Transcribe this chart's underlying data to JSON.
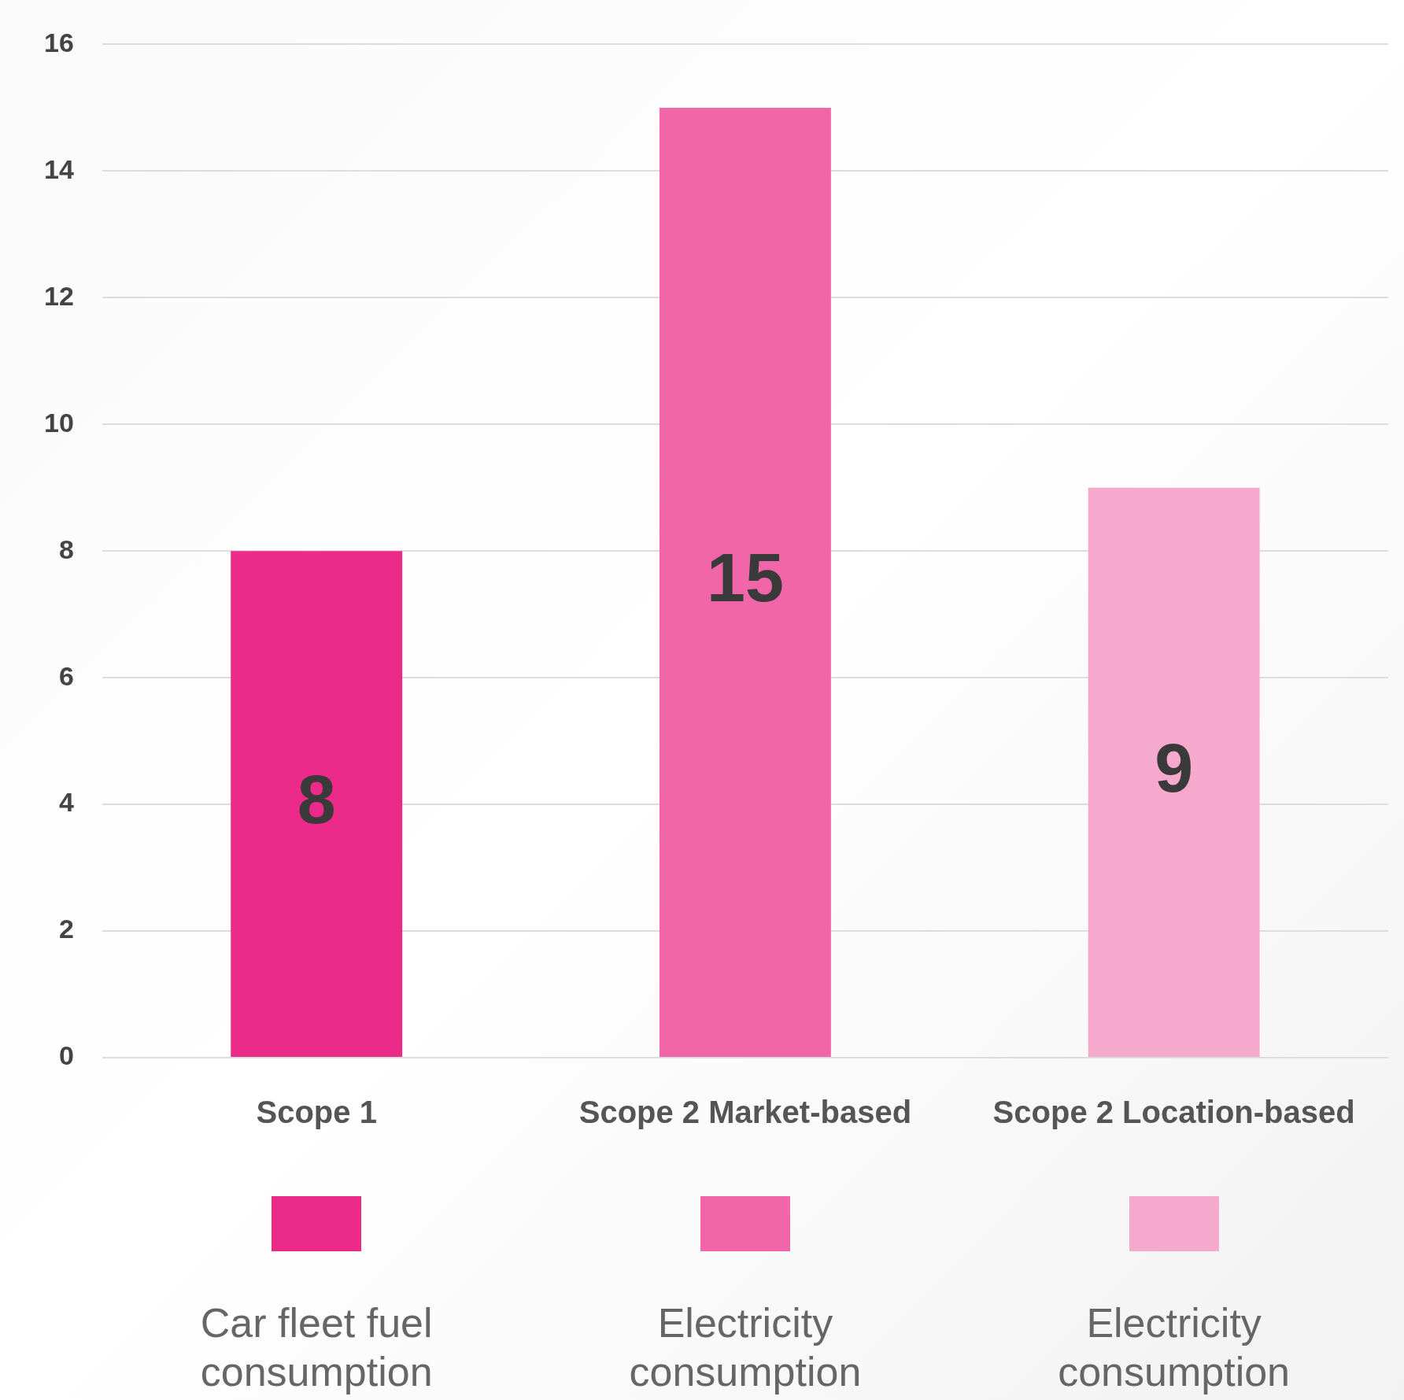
{
  "chart_data": {
    "type": "bar",
    "categories": [
      "Scope 1",
      "Scope 2 Market-based",
      "Scope 2 Location-based"
    ],
    "series": [
      {
        "name": "Car fleet fuel consumption",
        "color": "#ec2a89",
        "values": [
          8,
          null,
          null
        ]
      },
      {
        "name": "Electricity consumption",
        "color": "#f066a8",
        "values": [
          null,
          15,
          null
        ]
      },
      {
        "name": "Electricity consumption",
        "color": "#f5a9cd",
        "values": [
          null,
          null,
          9
        ]
      }
    ],
    "ylim": [
      0,
      16
    ],
    "yticks": [
      0,
      2,
      4,
      6,
      8,
      10,
      12,
      14,
      16
    ],
    "grid": "y",
    "data_labels": true,
    "legend": "bottom"
  }
}
